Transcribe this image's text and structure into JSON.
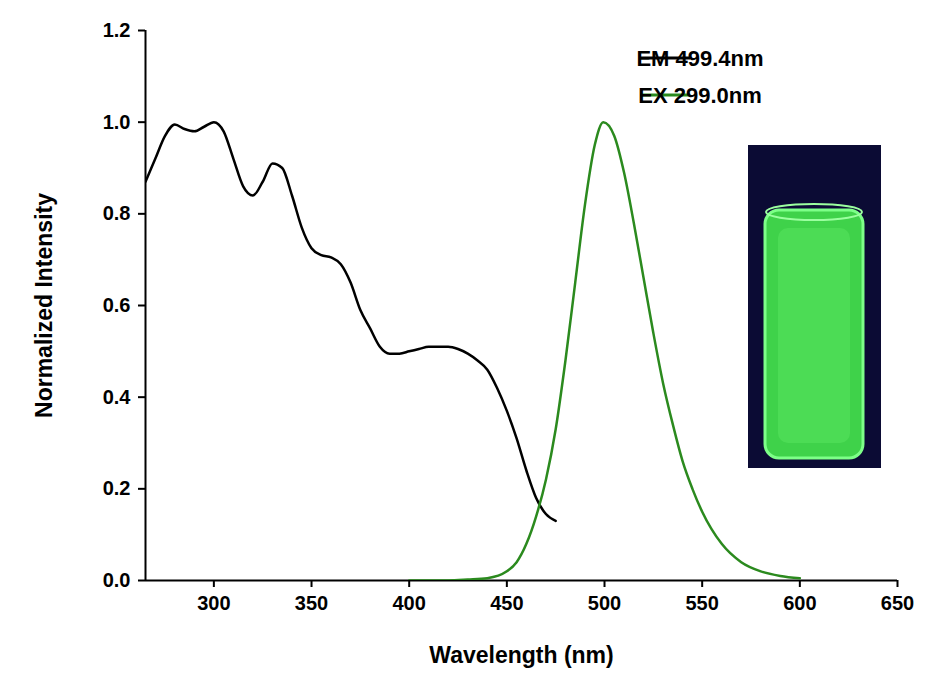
{
  "chart_data": {
    "type": "line",
    "x_label": "Wavelength (nm)",
    "y_label": "Normalized Intensity",
    "xlim": [
      265,
      650
    ],
    "xticks": [
      300,
      350,
      400,
      450,
      500,
      550,
      600,
      650
    ],
    "ylim": [
      0,
      1.2
    ],
    "yticks": [
      {
        "value": 0,
        "label": "0.0"
      },
      0.2,
      0.4,
      0.6,
      0.8,
      {
        "value": 1,
        "label": "1.0"
      },
      1.2
    ],
    "grid": false,
    "legend": "top-right",
    "series": [
      {
        "name": "EM 499.4nm",
        "color": "#000000",
        "x": [
          265,
          270,
          275,
          280,
          285,
          290,
          295,
          300,
          305,
          310,
          315,
          320,
          325,
          330,
          335,
          340,
          345,
          350,
          355,
          360,
          365,
          370,
          375,
          380,
          385,
          390,
          395,
          400,
          405,
          410,
          415,
          420,
          425,
          430,
          435,
          440,
          445,
          450,
          455,
          460,
          465,
          470,
          475
        ],
        "values": [
          0.87,
          0.92,
          0.97,
          0.995,
          0.985,
          0.98,
          0.99,
          1.0,
          0.98,
          0.92,
          0.86,
          0.84,
          0.87,
          0.91,
          0.9,
          0.84,
          0.77,
          0.725,
          0.71,
          0.705,
          0.69,
          0.65,
          0.59,
          0.55,
          0.51,
          0.495,
          0.495,
          0.5,
          0.505,
          0.51,
          0.51,
          0.51,
          0.505,
          0.495,
          0.48,
          0.46,
          0.42,
          0.37,
          0.31,
          0.24,
          0.18,
          0.145,
          0.13
        ]
      },
      {
        "name": "EX 299.0nm",
        "color": "#2b8a1e",
        "x": [
          400,
          420,
          430,
          440,
          450,
          455,
          460,
          465,
          470,
          475,
          480,
          485,
          490,
          495,
          499.4,
          505,
          510,
          515,
          520,
          525,
          530,
          535,
          540,
          545,
          550,
          560,
          570,
          580,
          590,
          600
        ],
        "values": [
          0,
          0,
          0.002,
          0.005,
          0.02,
          0.04,
          0.08,
          0.14,
          0.22,
          0.33,
          0.48,
          0.65,
          0.82,
          0.95,
          1.0,
          0.97,
          0.89,
          0.78,
          0.66,
          0.54,
          0.43,
          0.34,
          0.26,
          0.2,
          0.15,
          0.08,
          0.04,
          0.02,
          0.01,
          0.005
        ]
      }
    ]
  }
}
